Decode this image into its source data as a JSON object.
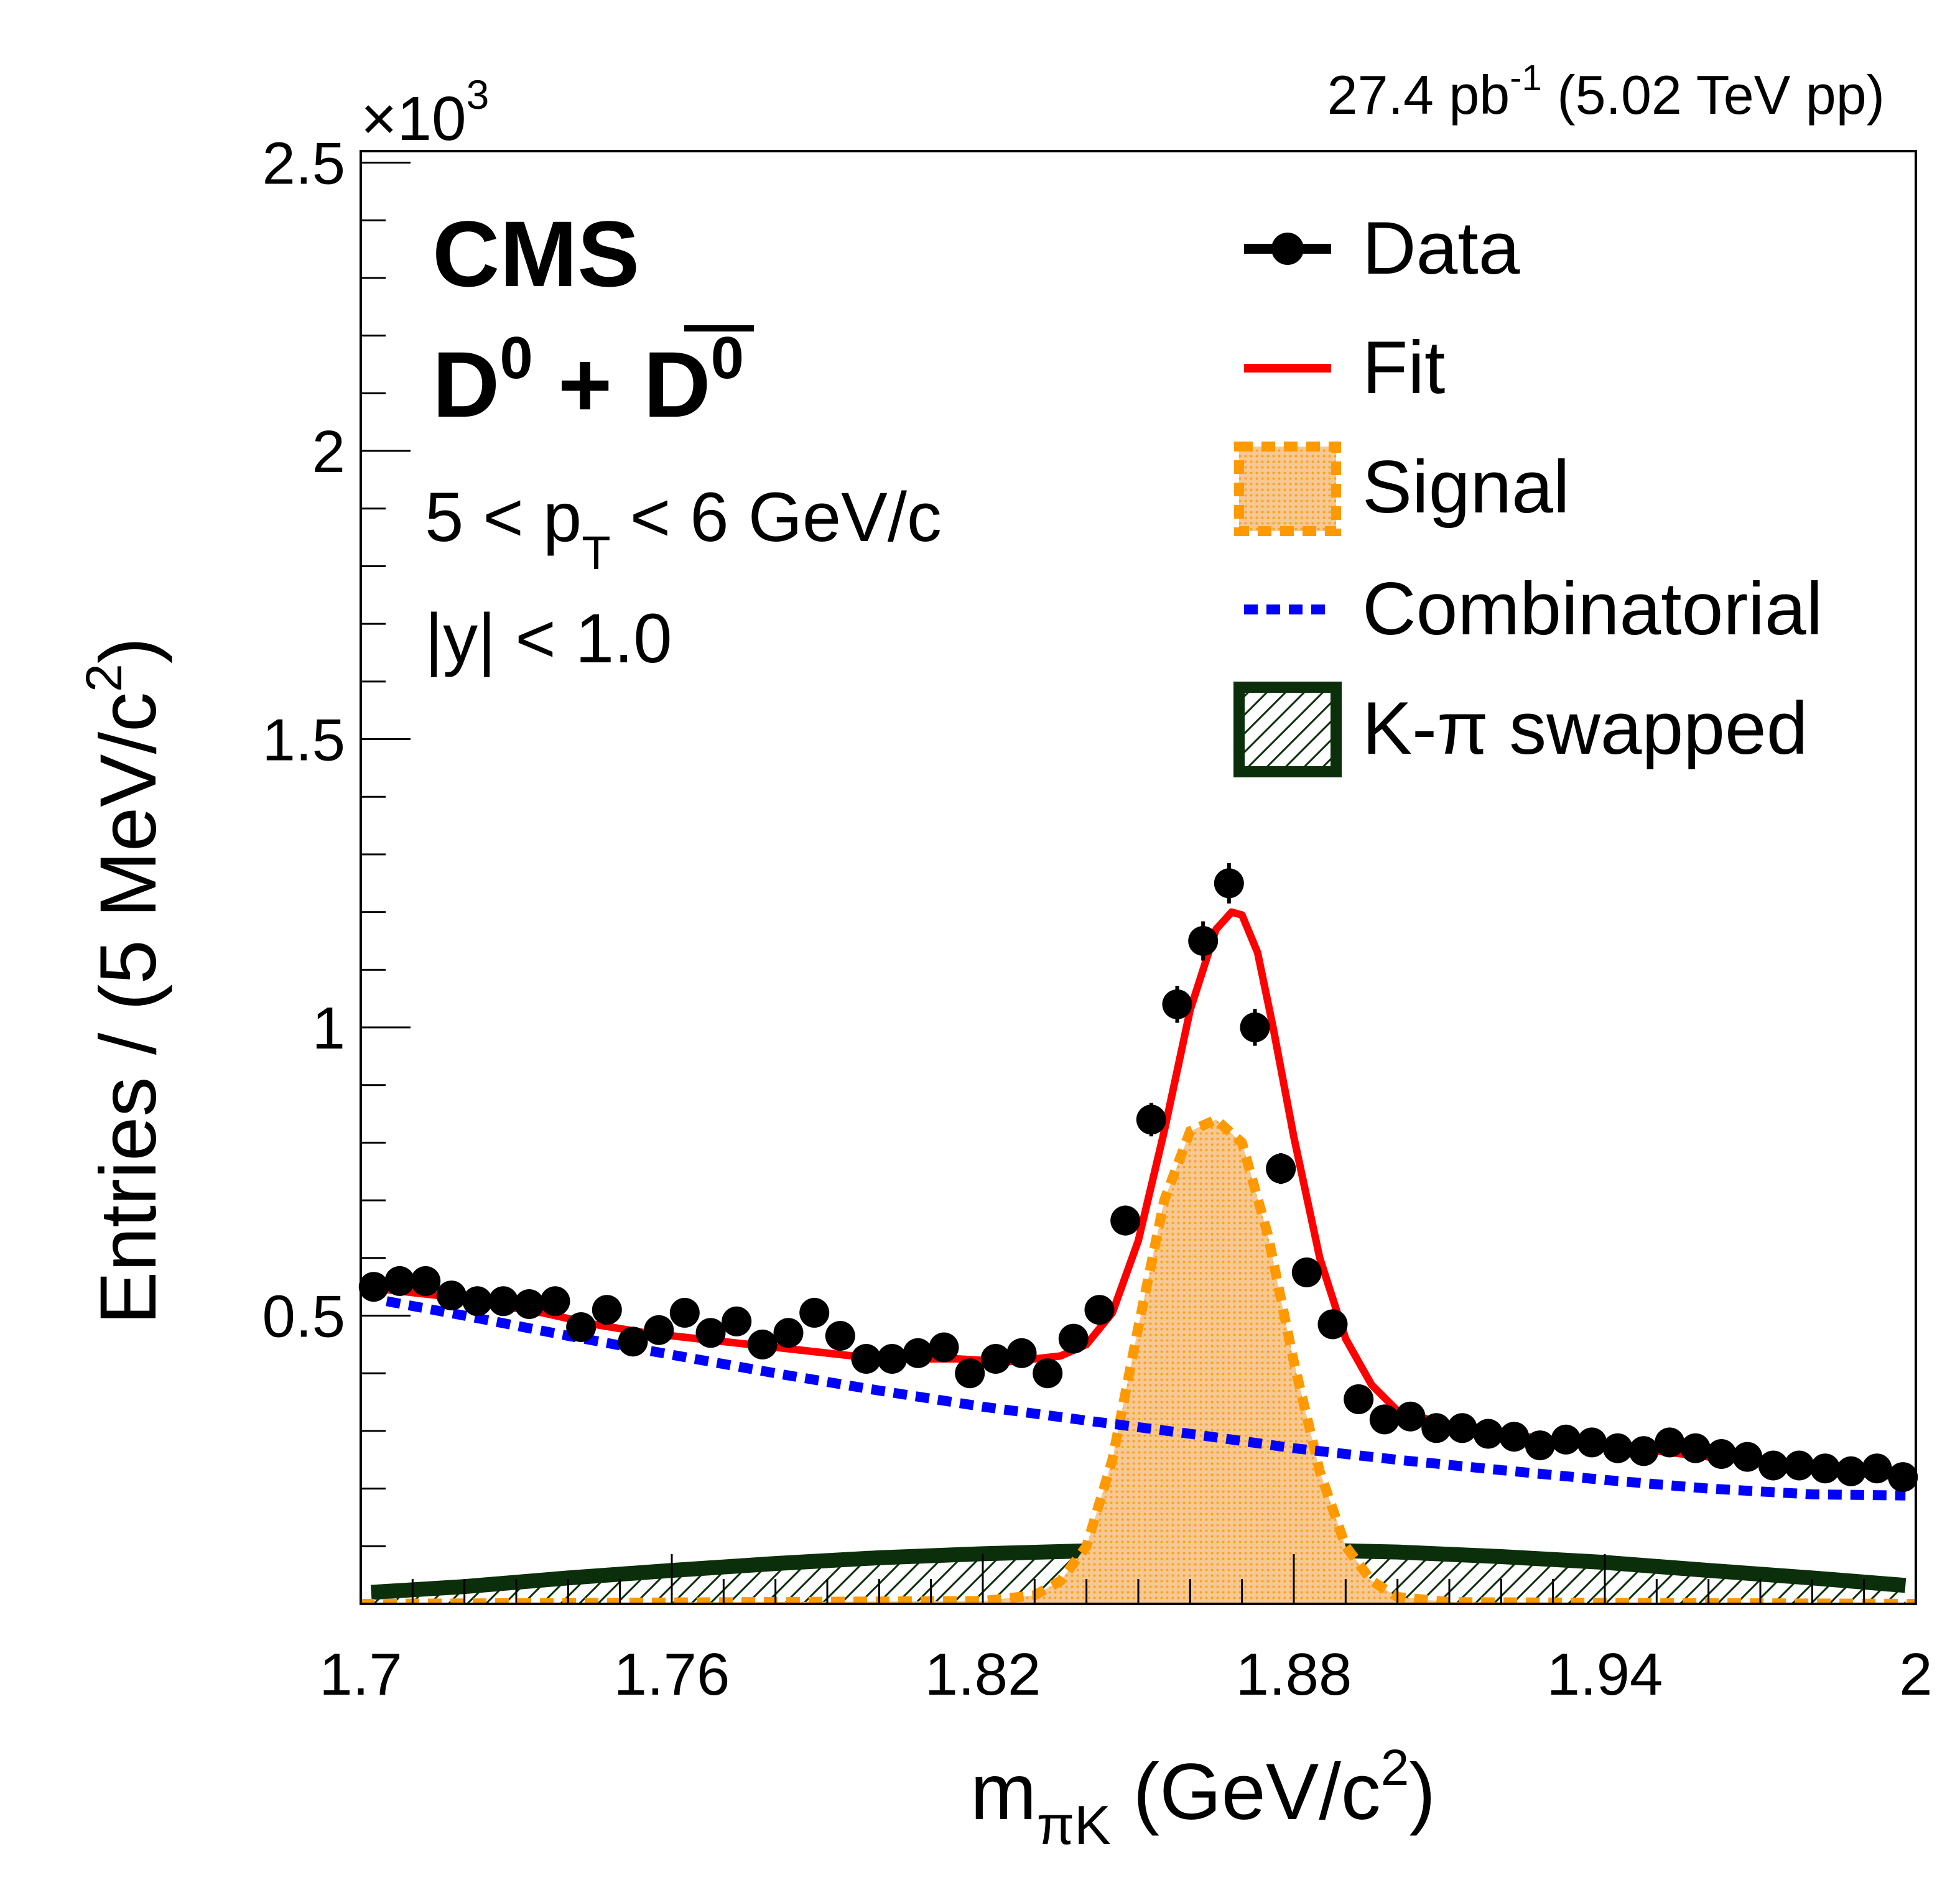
{
  "chart_data": {
    "type": "scatter",
    "title": "",
    "lumi_label": {
      "main": "27.4 pb",
      "sup": "-1",
      "tail": " (5.02 TeV pp)"
    },
    "experiment": "CMS",
    "particle_label": {
      "d": "D",
      "sup": "0",
      "plus": "+",
      "dbar": "D",
      "sup2": "0"
    },
    "kinematic_cuts": {
      "pt": {
        "pre": "5 < p",
        "sub": "T",
        "post": " < 6 GeV/c"
      },
      "y": "|y| < 1.0"
    },
    "xlabel": {
      "main": "m",
      "sub": "πK",
      "unit": " (GeV/c",
      "sup": "2",
      "close": ")"
    },
    "ylabel": {
      "main": "Entries / (5 MeV/c",
      "sup": "2",
      "close": ")"
    },
    "y_multiplier": {
      "text": "×10",
      "sup": "3"
    },
    "xlim": [
      1.7,
      2.0
    ],
    "ylim": [
      0,
      2.52
    ],
    "x_ticks": [
      1.7,
      1.76,
      1.82,
      1.88,
      1.94,
      2.0
    ],
    "x_tick_labels": [
      "1.7",
      "1.76",
      "1.82",
      "1.88",
      "1.94",
      "2"
    ],
    "y_ticks": [
      0.5,
      1.0,
      1.5,
      2.0,
      2.5
    ],
    "y_tick_labels": [
      "0.5",
      "1",
      "1.5",
      "2",
      "2.5"
    ],
    "legend": {
      "position": "top-right",
      "entries": [
        "Data",
        "Fit",
        "Signal",
        "Combinatorial",
        "K-π swapped"
      ]
    },
    "colors": {
      "data": "#000000",
      "fit": "#ff0000",
      "signal_line": "#ff9900",
      "signal_fill": "#f8c486",
      "combinatorial": "#0000ff",
      "swapped_line": "#0b2e0b",
      "swapped_hatch": "#0b2e0b"
    },
    "series": [
      {
        "name": "Data",
        "x": [
          1.7025,
          1.7075,
          1.7125,
          1.7175,
          1.7225,
          1.7275,
          1.7325,
          1.7375,
          1.7425,
          1.7475,
          1.7525,
          1.7575,
          1.7625,
          1.7675,
          1.7725,
          1.7775,
          1.7825,
          1.7875,
          1.7925,
          1.7975,
          1.8025,
          1.8075,
          1.8125,
          1.8175,
          1.8225,
          1.8275,
          1.8325,
          1.8375,
          1.8425,
          1.8475,
          1.8525,
          1.8575,
          1.8625,
          1.8675,
          1.8725,
          1.8775,
          1.8825,
          1.8875,
          1.8925,
          1.8975,
          1.9025,
          1.9075,
          1.9125,
          1.9175,
          1.9225,
          1.9275,
          1.9325,
          1.9375,
          1.9425,
          1.9475,
          1.9525,
          1.9575,
          1.9625,
          1.9675,
          1.9725,
          1.9775,
          1.9825,
          1.9875,
          1.9925,
          1.9975
        ],
        "y": [
          0.55,
          0.56,
          0.56,
          0.535,
          0.525,
          0.525,
          0.52,
          0.525,
          0.48,
          0.51,
          0.455,
          0.475,
          0.505,
          0.47,
          0.49,
          0.45,
          0.47,
          0.505,
          0.465,
          0.425,
          0.425,
          0.435,
          0.445,
          0.4,
          0.425,
          0.435,
          0.4,
          0.46,
          0.51,
          0.665,
          0.84,
          1.04,
          1.15,
          1.25,
          1.0,
          0.755,
          0.575,
          0.485,
          0.355,
          0.32,
          0.325,
          0.305,
          0.305,
          0.295,
          0.29,
          0.275,
          0.285,
          0.28,
          0.27,
          0.265,
          0.28,
          0.27,
          0.26,
          0.255,
          0.24,
          0.24,
          0.235,
          0.23,
          0.235,
          0.22
        ],
        "y_err": [
          0.024,
          0.024,
          0.024,
          0.023,
          0.023,
          0.023,
          0.023,
          0.023,
          0.022,
          0.023,
          0.021,
          0.022,
          0.022,
          0.022,
          0.022,
          0.021,
          0.022,
          0.022,
          0.022,
          0.021,
          0.021,
          0.021,
          0.021,
          0.02,
          0.021,
          0.021,
          0.02,
          0.021,
          0.023,
          0.026,
          0.029,
          0.032,
          0.034,
          0.035,
          0.032,
          0.027,
          0.024,
          0.022,
          0.019,
          0.018,
          0.018,
          0.017,
          0.017,
          0.017,
          0.017,
          0.017,
          0.017,
          0.017,
          0.016,
          0.016,
          0.017,
          0.016,
          0.016,
          0.016,
          0.015,
          0.015,
          0.015,
          0.015,
          0.015,
          0.015
        ]
      },
      {
        "name": "Fit",
        "x": [
          1.705,
          1.715,
          1.725,
          1.735,
          1.745,
          1.755,
          1.765,
          1.775,
          1.785,
          1.795,
          1.805,
          1.815,
          1.825,
          1.835,
          1.84,
          1.845,
          1.85,
          1.855,
          1.86,
          1.865,
          1.868,
          1.87,
          1.873,
          1.876,
          1.88,
          1.885,
          1.89,
          1.895,
          1.9,
          1.91,
          1.92,
          1.93,
          1.94,
          1.95,
          1.96,
          1.97,
          1.98,
          1.99,
          1.998
        ],
        "y": [
          0.545,
          0.535,
          0.52,
          0.505,
          0.485,
          0.47,
          0.46,
          0.45,
          0.44,
          0.43,
          0.425,
          0.425,
          0.42,
          0.43,
          0.45,
          0.505,
          0.63,
          0.82,
          1.03,
          1.17,
          1.2,
          1.195,
          1.13,
          1.0,
          0.81,
          0.6,
          0.46,
          0.38,
          0.335,
          0.31,
          0.295,
          0.285,
          0.275,
          0.265,
          0.255,
          0.245,
          0.235,
          0.225,
          0.22
        ]
      },
      {
        "name": "Signal",
        "x": [
          1.7,
          1.82,
          1.83,
          1.835,
          1.84,
          1.845,
          1.85,
          1.855,
          1.86,
          1.865,
          1.87,
          1.875,
          1.88,
          1.885,
          1.89,
          1.895,
          1.9,
          1.91,
          2.0
        ],
        "y": [
          0.0,
          0.005,
          0.015,
          0.04,
          0.1,
          0.25,
          0.48,
          0.7,
          0.82,
          0.84,
          0.8,
          0.64,
          0.42,
          0.23,
          0.1,
          0.04,
          0.012,
          0.003,
          0.0
        ]
      },
      {
        "name": "Combinatorial",
        "x": [
          1.705,
          1.72,
          1.74,
          1.76,
          1.78,
          1.8,
          1.82,
          1.84,
          1.86,
          1.88,
          1.9,
          1.92,
          1.94,
          1.96,
          1.98,
          1.998
        ],
        "y": [
          0.525,
          0.5,
          0.465,
          0.432,
          0.4,
          0.37,
          0.342,
          0.318,
          0.295,
          0.27,
          0.25,
          0.232,
          0.215,
          0.2,
          0.19,
          0.188
        ]
      },
      {
        "name": "K-π swapped",
        "x": [
          1.702,
          1.72,
          1.74,
          1.76,
          1.78,
          1.8,
          1.82,
          1.84,
          1.86,
          1.88,
          1.9,
          1.92,
          1.94,
          1.96,
          1.98,
          1.998
        ],
        "y": [
          0.02,
          0.03,
          0.045,
          0.058,
          0.07,
          0.08,
          0.087,
          0.092,
          0.094,
          0.094,
          0.09,
          0.082,
          0.072,
          0.058,
          0.045,
          0.032
        ]
      }
    ]
  }
}
